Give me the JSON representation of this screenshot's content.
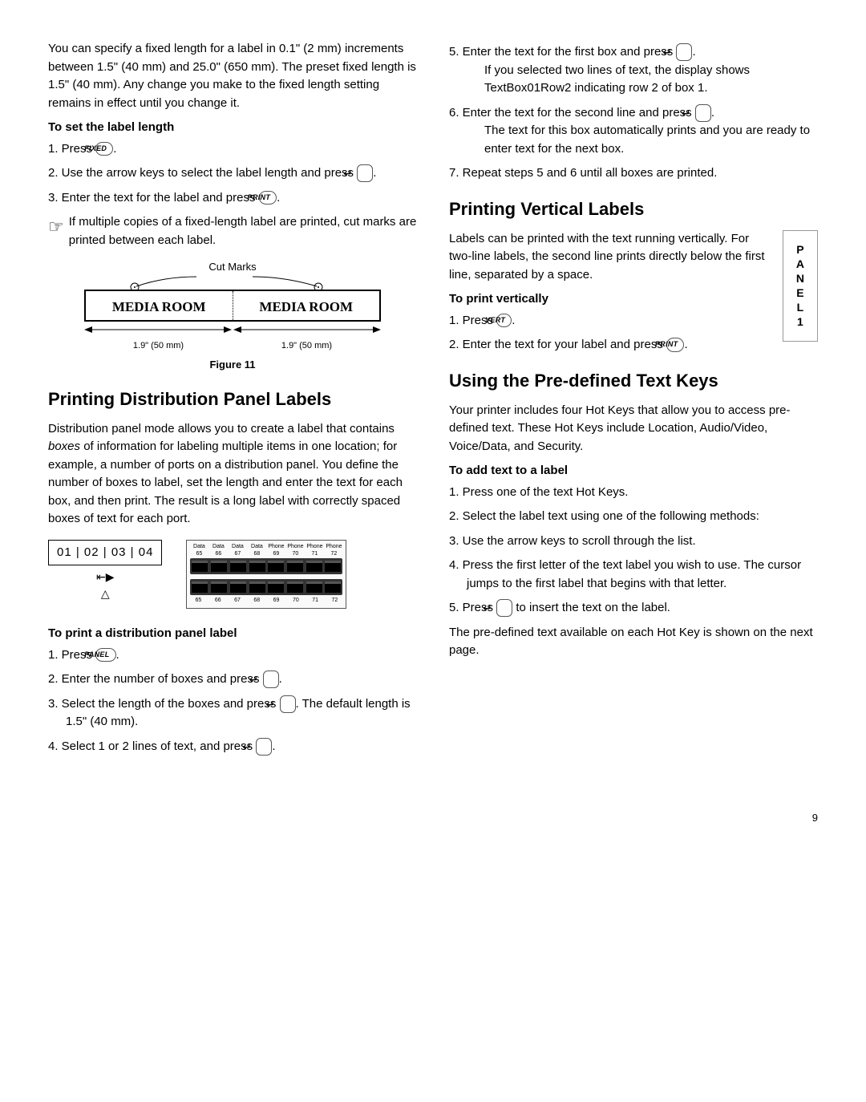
{
  "col1": {
    "intro": "You can specify a fixed length for a label in 0.1\" (2 mm) increments between 1.5\" (40 mm) and 25.0\" (650 mm). The preset fixed length is 1.5\" (40 mm). Any change you make to the fixed length setting remains in effect until you change it.",
    "set_length_h": "To set the label length",
    "step1a": "1. Press ",
    "btn_fixed": "FIXED",
    "step2a": "2. Use the arrow keys to select the label length and press ",
    "step3a": "3. Enter the text for the label and press ",
    "btn_print": "PRINT",
    "note": "If multiple copies of a fixed-length label are printed, cut marks are printed between each label.",
    "cut_marks_label": "Cut Marks",
    "media_room": "MEDIA ROOM",
    "dim": "1.9\" (50 mm)",
    "fig_caption": "Figure 11",
    "dist_h": "Printing Distribution Panel Labels",
    "dist_p": "Distribution panel mode allows you to create a label that contains boxes of information for labeling multiple items in one location; for example, a number of ports on a distribution panel. You define the number of boxes to label, set the length and enter the text for each box, and then print. The result is a long label with correctly spaced boxes of text for each port.",
    "port_labels": "01  |  02  |  03  |  04",
    "jack_top_labels": [
      "Data",
      "Data",
      "Data",
      "Data",
      "Phone",
      "Phone",
      "Phone",
      "Phone"
    ],
    "jack_top_nums": [
      "65",
      "66",
      "67",
      "68",
      "69",
      "70",
      "71",
      "72"
    ],
    "jack_bottom_nums": [
      "65",
      "66",
      "67",
      "68",
      "69",
      "70",
      "71",
      "72"
    ],
    "print_dist_h": "To print a distribution panel label",
    "d1": "1. Press ",
    "btn_panel": "PANEL",
    "d2": "2. Enter the number of boxes and press ",
    "d3a": "3. Select the length of the boxes and press ",
    "d3b": ". The default length is 1.5\" (40 mm).",
    "d4": "4. Select 1 or 2 lines of text, and press "
  },
  "col2": {
    "d5": "5. Enter the text for the first box and press ",
    "d5_sub": "If you selected two lines of text, the display shows TextBox01Row2 indicating row 2 of box 1.",
    "d6": "6. Enter the text for the second line and press ",
    "d6_sub": "The text for this box automatically prints and you are ready to enter text for the next box.",
    "d7": "7. Repeat steps 5 and 6 until all boxes are printed.",
    "vert_h": "Printing Vertical Labels",
    "vert_p": "Labels can be printed with the text running vertically. For two-line labels, the second line prints directly below the first line, separated by a space.",
    "vert_box": "P\nA\nN\nE\nL\n1",
    "vert_print_h": "To print vertically",
    "v1": "1. Press ",
    "btn_vert": "VERT",
    "v2": "2. Enter the text for your label and press ",
    "btn_print": "PRINT",
    "pre_h": "Using the Pre-defined Text Keys",
    "pre_p": "Your printer includes four Hot Keys that allow you to access pre-defined text. These Hot Keys include Location, Audio/Video, Voice/Data, and Security.",
    "add_h": "To add text to a label",
    "p1": "1. Press one of the text Hot Keys.",
    "p2": "2. Select the label text using one of the following methods:",
    "p3": "3. Use the arrow keys to scroll through the list.",
    "p4": "4. Press the first letter of the text label you wish to use. The cursor jumps to the first label that begins with that letter.",
    "p5a": "5. Press ",
    "p5b": " to insert the text on the label.",
    "pre_end": "The pre-defined text available on each Hot Key is shown on the next page."
  },
  "page_num": "9"
}
